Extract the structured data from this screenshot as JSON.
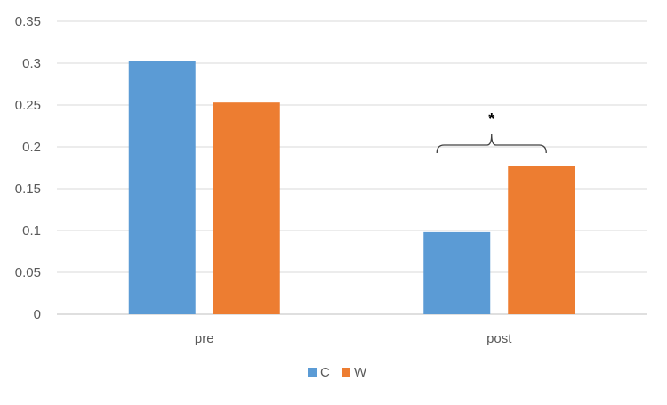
{
  "chart_data": {
    "type": "bar",
    "categories": [
      "pre",
      "post"
    ],
    "series": [
      {
        "name": "C",
        "values": [
          0.303,
          0.098
        ],
        "color": "#5B9BD5"
      },
      {
        "name": "W",
        "values": [
          0.253,
          0.177
        ],
        "color": "#ED7D31"
      }
    ],
    "ylim": [
      0,
      0.35
    ],
    "yticks": [
      "0",
      "0.05",
      "0.1",
      "0.15",
      "0.2",
      "0.25",
      "0.3",
      "0.35"
    ],
    "grid": true,
    "legend_position": "bottom",
    "annotations": [
      {
        "text": "*",
        "category": "post",
        "type": "significance-bracket"
      }
    ]
  }
}
